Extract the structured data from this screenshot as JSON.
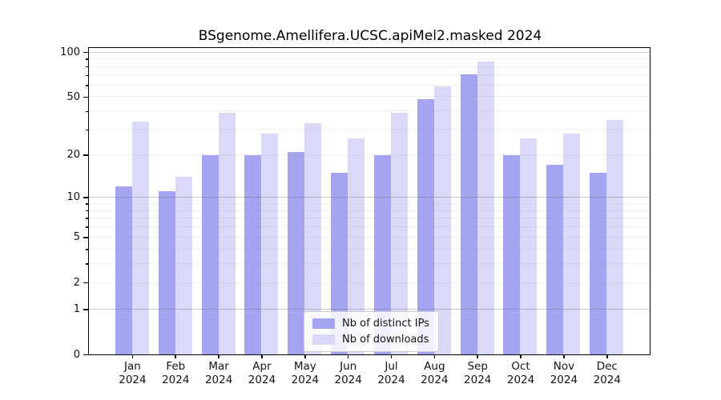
{
  "title": "BSgenome.Amellifera.UCSC.apiMel2.masked 2024",
  "chart_data": {
    "type": "bar",
    "title": "BSgenome.Amellifera.UCSC.apiMel2.masked 2024",
    "categories": [
      "Jan",
      "Feb",
      "Mar",
      "Apr",
      "May",
      "Jun",
      "Jul",
      "Aug",
      "Sep",
      "Oct",
      "Nov",
      "Dec"
    ],
    "x_year_label": "2024",
    "series": [
      {
        "name": "Nb of distinct IPs",
        "color": "#a4a4f1",
        "values": [
          12,
          11,
          20,
          20,
          21,
          15,
          20,
          48,
          71,
          20,
          17,
          15
        ]
      },
      {
        "name": "Nb of downloads",
        "color": "#dadaf8",
        "values": [
          34,
          14,
          39,
          28,
          33,
          26,
          39,
          59,
          86,
          26,
          28,
          35
        ]
      }
    ],
    "yscale": "log1p",
    "ylim": [
      0,
      106
    ],
    "ytick_labels": [
      0,
      1,
      2,
      5,
      10,
      20,
      50,
      100
    ],
    "major_gridlines": [
      1,
      10,
      100
    ],
    "light_gridlines": [
      2,
      5,
      20,
      50
    ],
    "minor_gridlines": [
      3,
      4,
      6,
      7,
      8,
      9,
      30,
      40,
      60,
      70,
      80,
      90
    ],
    "grid": true,
    "grid_above_bars": true,
    "legend_position": "lower center",
    "xlabel": "",
    "ylabel": ""
  },
  "legend": {
    "items": [
      {
        "label": "Nb of distinct IPs"
      },
      {
        "label": "Nb of downloads"
      }
    ]
  }
}
